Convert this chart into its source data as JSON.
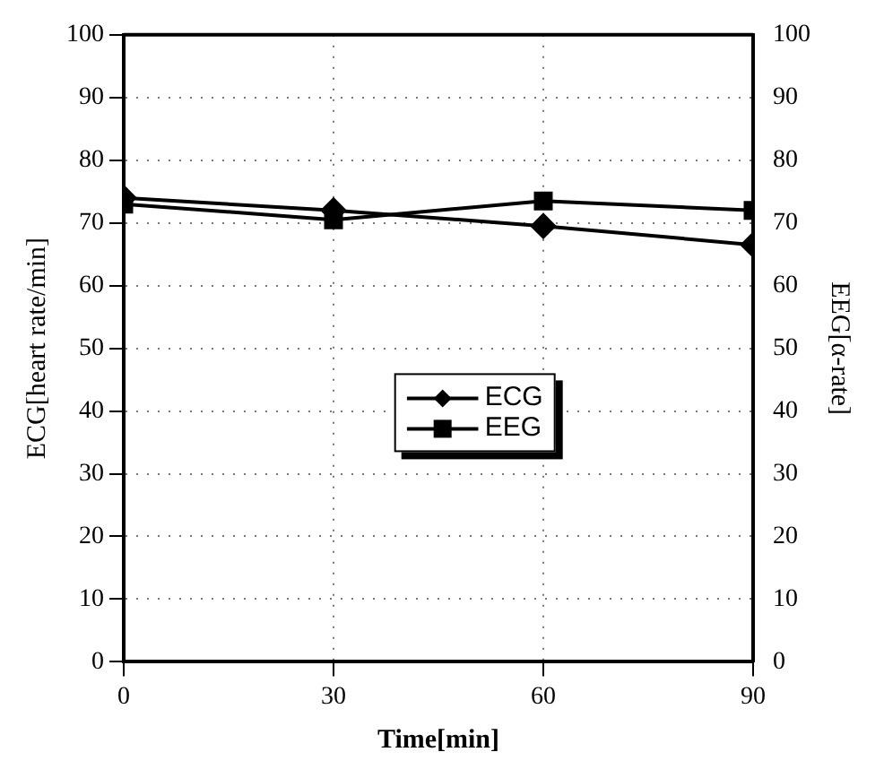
{
  "chart_data": {
    "type": "line",
    "xlabel": "Time[min]",
    "ylabel": "ECG[heart rate/min]",
    "y2label": "EEG[α-rate]",
    "x": [
      0,
      30,
      60,
      90
    ],
    "xlim": [
      0,
      90
    ],
    "xticks": [
      0,
      30,
      60,
      90
    ],
    "ylim": [
      0,
      100
    ],
    "yticks": [
      0,
      10,
      20,
      30,
      40,
      50,
      60,
      70,
      80,
      90,
      100
    ],
    "y2lim": [
      0,
      100
    ],
    "y2ticks": [
      0,
      10,
      20,
      30,
      40,
      50,
      60,
      70,
      80,
      90,
      100
    ],
    "grid": true,
    "legend": "center",
    "line_style": "solid",
    "series": [
      {
        "name": "ECG",
        "color": "#000000",
        "marker": "diamond",
        "values": [
          74,
          72,
          69.5,
          66.5
        ]
      },
      {
        "name": "EEG",
        "color": "#000000",
        "marker": "square",
        "axis": "y2",
        "values": [
          73,
          70.5,
          73.5,
          72
        ]
      }
    ]
  }
}
